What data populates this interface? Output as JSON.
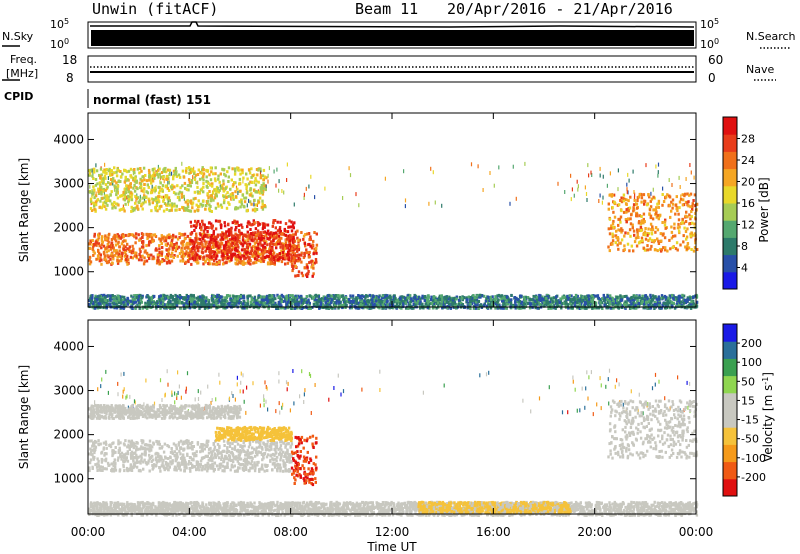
{
  "header": {
    "station": "Unwin (fitACF)",
    "beam": "Beam 11",
    "dates": "20/Apr/2016 - 21/Apr/2016"
  },
  "status_panels": {
    "nsky_label": "N.Sky",
    "nsky_ticks": [
      "10^5",
      "10^0"
    ],
    "nsearch_label": "N.Search",
    "nsearch_ticks": [
      "10^5",
      "10^0"
    ],
    "freq_label": "Freq.",
    "freq_unit": "[MHz]",
    "freq_ticks": [
      "18",
      "8"
    ],
    "nave_label": "Nave",
    "nave_ticks": [
      "60",
      "0"
    ],
    "cpid_label": "CPID",
    "cpid_value": "normal (fast) 151"
  },
  "colors": {
    "power": [
      "#1a1ae6",
      "#2850a8",
      "#2d7a6a",
      "#55a870",
      "#a6cc55",
      "#e8d82a",
      "#f5a623",
      "#f0701a",
      "#e83c1a",
      "#e01010"
    ],
    "velocity": [
      "#e01010",
      "#f05a14",
      "#f59a1a",
      "#f5c23a",
      "#c8c8c0",
      "#c8c8c0",
      "#8fd650",
      "#3aa050",
      "#2a6f9a",
      "#1a1ae6"
    ]
  },
  "chart_data": [
    {
      "type": "heatmap",
      "title": "Power",
      "ylabel": "Slant Range [km]",
      "xlabel": "Time UT",
      "x_ticks": [
        "00:00",
        "04:00",
        "08:00",
        "12:00",
        "16:00",
        "20:00",
        "00:00"
      ],
      "x_range_hours": [
        0,
        24
      ],
      "y_ticks": [
        "1000",
        "2000",
        "3000",
        "4000"
      ],
      "y_range_km": [
        200,
        4600
      ],
      "colorbar_label": "Power [dB]",
      "colorbar_ticks": [
        "4",
        "8",
        "12",
        "16",
        "20",
        "24",
        "28"
      ],
      "colorbar_range": [
        0,
        32
      ],
      "features": [
        {
          "t0": 0,
          "t1": 8.3,
          "r0": 1200,
          "r1": 1900,
          "value": 24
        },
        {
          "t0": 4.0,
          "t1": 8.1,
          "r0": 1300,
          "r1": 2200,
          "value": 29
        },
        {
          "t0": 8.0,
          "t1": 9.0,
          "r0": 900,
          "r1": 2000,
          "value": 26
        },
        {
          "t0": 0,
          "t1": 7.0,
          "r0": 2400,
          "r1": 3400,
          "value": 17
        },
        {
          "t0": 20.5,
          "t1": 24,
          "r0": 1500,
          "r1": 2800,
          "value": 22
        },
        {
          "t0": 0,
          "t1": 24,
          "r0": 200,
          "r1": 500,
          "value": 8
        }
      ]
    },
    {
      "type": "heatmap",
      "title": "Velocity",
      "ylabel": "Slant Range [km]",
      "xlabel": "Time UT",
      "x_ticks": [
        "00:00",
        "04:00",
        "08:00",
        "12:00",
        "16:00",
        "20:00",
        "00:00"
      ],
      "x_range_hours": [
        0,
        24
      ],
      "y_ticks": [
        "1000",
        "2000",
        "3000",
        "4000"
      ],
      "y_range_km": [
        200,
        4600
      ],
      "colorbar_label": "Velocity [m s^-1]",
      "colorbar_ticks": [
        "200",
        "100",
        "50",
        "15",
        "-15",
        "-50",
        "-100",
        "-200"
      ],
      "colorbar_range": [
        -250,
        250
      ],
      "features": [
        {
          "t0": 0,
          "t1": 8.0,
          "r0": 1200,
          "r1": 1900,
          "value": 0
        },
        {
          "t0": 5.0,
          "t1": 8.0,
          "r0": 1900,
          "r1": 2200,
          "value": -80
        },
        {
          "t0": 8.0,
          "t1": 9.0,
          "r0": 900,
          "r1": 2000,
          "value": -200
        },
        {
          "t0": 0,
          "t1": 6.0,
          "r0": 2400,
          "r1": 2700,
          "value": 0
        },
        {
          "t0": 20.5,
          "t1": 24,
          "r0": 1500,
          "r1": 2800,
          "value": 0
        },
        {
          "t0": 0,
          "t1": 24,
          "r0": 200,
          "r1": 500,
          "value": 20
        },
        {
          "t0": 13.0,
          "t1": 19.0,
          "r0": 250,
          "r1": 500,
          "value": -60
        }
      ]
    }
  ]
}
